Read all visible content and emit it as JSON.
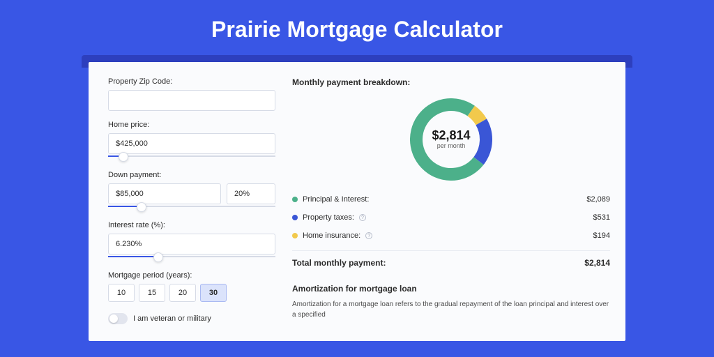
{
  "page": {
    "title": "Prairie Mortgage Calculator",
    "bg_color": "#3956e5",
    "shadow_color": "#2d3fbe",
    "card_bg": "#fafbfd",
    "text_color": "#2b2b2b",
    "border_color": "#d6dbe6"
  },
  "form": {
    "zip": {
      "label": "Property Zip Code:",
      "value": ""
    },
    "home_price": {
      "label": "Home price:",
      "value": "$425,000",
      "slider_pct": 9
    },
    "down_payment": {
      "label": "Down payment:",
      "value": "$85,000",
      "pct_value": "20%",
      "slider_pct": 20
    },
    "interest": {
      "label": "Interest rate (%):",
      "value": "6.230%",
      "slider_pct": 30
    },
    "period": {
      "label": "Mortgage period (years):",
      "options": [
        "10",
        "15",
        "20",
        "30"
      ],
      "selected": "30"
    },
    "veteran": {
      "label": "I am veteran or military",
      "checked": false
    }
  },
  "breakdown": {
    "title": "Monthly payment breakdown:",
    "center_amount": "$2,814",
    "center_sub": "per month",
    "items": [
      {
        "label": "Principal & Interest:",
        "value": "$2,089",
        "color": "#4cb08a",
        "info": false,
        "pct": 74.2
      },
      {
        "label": "Property taxes:",
        "value": "$531",
        "color": "#3a56d6",
        "info": true,
        "pct": 18.9
      },
      {
        "label": "Home insurance:",
        "value": "$194",
        "color": "#f2c94c",
        "info": true,
        "pct": 6.9
      }
    ],
    "total_label": "Total monthly payment:",
    "total_value": "$2,814",
    "donut": {
      "size": 118,
      "thickness": 18,
      "bg": "#ffffff"
    }
  },
  "amortization": {
    "title": "Amortization for mortgage loan",
    "text": "Amortization for a mortgage loan refers to the gradual repayment of the loan principal and interest over a specified"
  }
}
